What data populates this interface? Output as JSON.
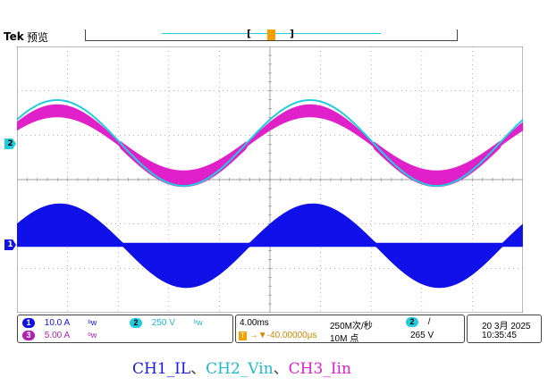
{
  "header": {
    "brand": "Tek",
    "mode": "预览"
  },
  "markers": {
    "trigger_top": "T",
    "ch2_marker": "2",
    "ch1_marker": "1"
  },
  "colors": {
    "ch1": "#1010e8",
    "ch2": "#22ccdd",
    "ch3": "#e020c8",
    "grid": "#888888",
    "trigger": "#f5a000"
  },
  "channels": [
    {
      "id": "1",
      "scale": "10.0 A",
      "coupling_icon": "bandwidth-limit-icon"
    },
    {
      "id": "3",
      "scale": "5.00 A",
      "coupling_icon": "bandwidth-limit-icon"
    },
    {
      "id": "2",
      "scale": "250 V",
      "coupling_icon": "bandwidth-limit-icon"
    }
  ],
  "timebase": {
    "scale": "4.00ms",
    "sample_rate": "250M次/秒",
    "trigger_pos": "→▼-40.00000µs",
    "record_length": "10M 点"
  },
  "trigger": {
    "source": "2",
    "slope": "/",
    "level": "265 V"
  },
  "datetime": {
    "date": "20 3月 2025",
    "time": "10:35:45"
  },
  "caption": {
    "ch1": "CH1_IL",
    "sep1": "、",
    "ch2": "CH2_Vin",
    "sep2": "、",
    "ch3": "CH3_Iin"
  }
}
